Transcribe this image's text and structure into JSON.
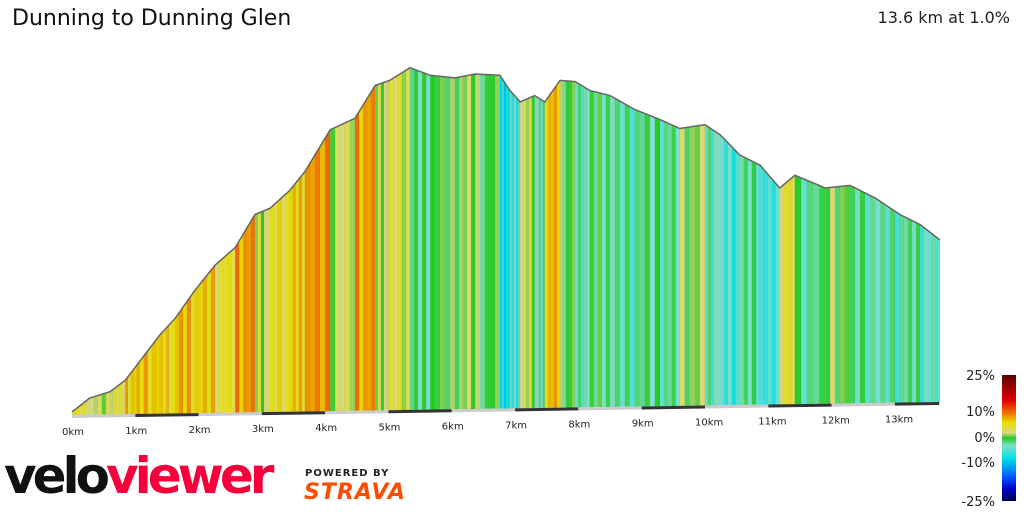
{
  "header": {
    "title": "Dunning to Dunning Glen",
    "summary": "13.6 km at 1.0%"
  },
  "branding": {
    "velo": "velo",
    "viewer": "viewer",
    "powered_by": "POWERED BY",
    "strava": "STRAVA"
  },
  "chart_data": {
    "type": "area",
    "title": "Dunning to Dunning Glen",
    "xlabel": "",
    "ylabel": "",
    "x_unit": "km",
    "xlim": [
      0,
      13.7
    ],
    "x_ticks": [
      "0km",
      "1km",
      "2km",
      "3km",
      "4km",
      "5km",
      "6km",
      "7km",
      "8km",
      "9km",
      "10km",
      "11km",
      "12km",
      "13km"
    ],
    "profile": {
      "distance_km": [
        0,
        0.28,
        0.6,
        0.84,
        1.07,
        1.39,
        1.63,
        1.94,
        2.26,
        2.58,
        2.89,
        3.13,
        3.44,
        3.68,
        4.08,
        4.47,
        4.79,
        5.02,
        5.34,
        5.66,
        6.05,
        6.37,
        6.76,
        6.92,
        7.08,
        7.31,
        7.47,
        7.71,
        7.95,
        8.18,
        8.5,
        8.89,
        9.29,
        9.6,
        10.0,
        10.24,
        10.55,
        10.87,
        11.18,
        11.42,
        11.9,
        12.29,
        12.69,
        13.08,
        13.4,
        13.71
      ],
      "relative_elevation_m": [
        0,
        11,
        16,
        25,
        40,
        61,
        74,
        96,
        116,
        130,
        156,
        161,
        175,
        190,
        223,
        232,
        258,
        262,
        272,
        266,
        264,
        267,
        266,
        254,
        245,
        250,
        245,
        262,
        261,
        254,
        250,
        239,
        231,
        224,
        227,
        219,
        203,
        195,
        177,
        187,
        177,
        179,
        169,
        156,
        148,
        136
      ]
    },
    "color_legend": {
      "labels": [
        "25%",
        "10%",
        "0%",
        "-10%",
        "-25%"
      ],
      "stops": [
        {
          "grade": 25,
          "color": "#5a0000"
        },
        {
          "grade": 15,
          "color": "#e00000"
        },
        {
          "grade": 10,
          "color": "#f07000"
        },
        {
          "grade": 6,
          "color": "#e8e000"
        },
        {
          "grade": 2,
          "color": "#d8d880"
        },
        {
          "grade": 0,
          "color": "#22cc22"
        },
        {
          "grade": -3,
          "color": "#80e0c8"
        },
        {
          "grade": -8,
          "color": "#00e0e8"
        },
        {
          "grade": -15,
          "color": "#0060ff"
        },
        {
          "grade": -20,
          "color": "#0000d0"
        },
        {
          "grade": -25,
          "color": "#000050"
        }
      ]
    }
  }
}
